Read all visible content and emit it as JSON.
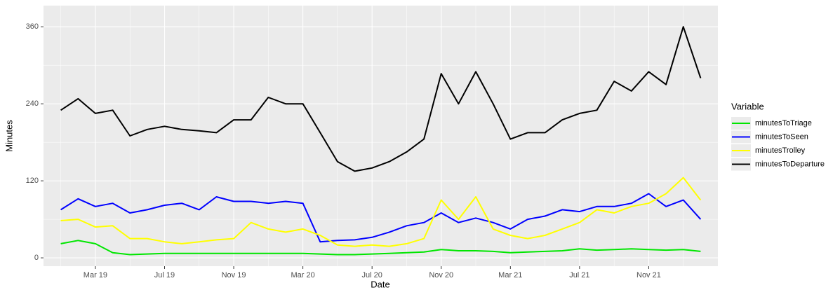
{
  "chart_data": {
    "type": "line",
    "x_label": "Date",
    "y_label": "Minutes",
    "legend_title": "Variable",
    "legend_position": "right",
    "grid": true,
    "x": [
      "2019-01",
      "2019-02",
      "2019-03",
      "2019-04",
      "2019-05",
      "2019-06",
      "2019-07",
      "2019-08",
      "2019-09",
      "2019-10",
      "2019-11",
      "2019-12",
      "2020-01",
      "2020-02",
      "2020-03",
      "2020-04",
      "2020-05",
      "2020-06",
      "2020-07",
      "2020-08",
      "2020-09",
      "2020-10",
      "2020-11",
      "2020-12",
      "2021-01",
      "2021-02",
      "2021-03",
      "2021-04",
      "2021-05",
      "2021-06",
      "2021-07",
      "2021-08",
      "2021-09",
      "2021-10",
      "2021-11",
      "2021-12",
      "2022-01",
      "2022-02"
    ],
    "xlim": [
      "2018-12",
      "2022-03"
    ],
    "xticks": [
      {
        "value": "2019-03",
        "label": "Mar 19"
      },
      {
        "value": "2019-07",
        "label": "Jul 19"
      },
      {
        "value": "2019-11",
        "label": "Nov 19"
      },
      {
        "value": "2020-03",
        "label": "Mar 20"
      },
      {
        "value": "2020-07",
        "label": "Jul 20"
      },
      {
        "value": "2020-11",
        "label": "Nov 20"
      },
      {
        "value": "2021-03",
        "label": "Mar 21"
      },
      {
        "value": "2021-07",
        "label": "Jul 21"
      },
      {
        "value": "2021-11",
        "label": "Nov 21"
      }
    ],
    "xminorticks": [
      "2019-01",
      "2019-05",
      "2019-09",
      "2020-01",
      "2020-05",
      "2020-09",
      "2021-01",
      "2021-05",
      "2021-09",
      "2022-01"
    ],
    "ylim": [
      -13,
      393
    ],
    "yticks": [
      0,
      120,
      240,
      360
    ],
    "yminorticks": [
      60,
      180,
      300
    ],
    "series": [
      {
        "name": "minutesToTriage",
        "color": "#00e600",
        "values": [
          22,
          27,
          22,
          8,
          5,
          6,
          7,
          7,
          7,
          7,
          7,
          7,
          7,
          7,
          7,
          6,
          5,
          5,
          6,
          7,
          8,
          9,
          13,
          11,
          11,
          10,
          8,
          9,
          10,
          11,
          14,
          12,
          13,
          14,
          13,
          12,
          13,
          10
        ]
      },
      {
        "name": "minutesToSeen",
        "color": "#0000ff",
        "values": [
          75,
          92,
          80,
          85,
          70,
          75,
          82,
          85,
          75,
          95,
          88,
          88,
          85,
          88,
          85,
          25,
          27,
          28,
          32,
          40,
          50,
          55,
          70,
          55,
          62,
          55,
          45,
          60,
          65,
          75,
          72,
          80,
          80,
          85,
          100,
          80,
          90,
          60
        ]
      },
      {
        "name": "minutesTrolley",
        "color": "#ffff00",
        "values": [
          58,
          60,
          48,
          50,
          30,
          30,
          25,
          22,
          25,
          28,
          30,
          55,
          45,
          40,
          45,
          35,
          20,
          18,
          20,
          18,
          22,
          30,
          90,
          60,
          95,
          45,
          35,
          30,
          35,
          45,
          55,
          75,
          70,
          80,
          85,
          100,
          125,
          90
        ]
      },
      {
        "name": "minutesToDeparture",
        "color": "#000000",
        "values": [
          230,
          248,
          225,
          230,
          190,
          200,
          205,
          200,
          198,
          195,
          215,
          215,
          250,
          240,
          240,
          195,
          150,
          135,
          140,
          150,
          165,
          185,
          287,
          240,
          290,
          240,
          185,
          195,
          195,
          215,
          225,
          230,
          275,
          260,
          290,
          270,
          360,
          280
        ]
      }
    ]
  }
}
